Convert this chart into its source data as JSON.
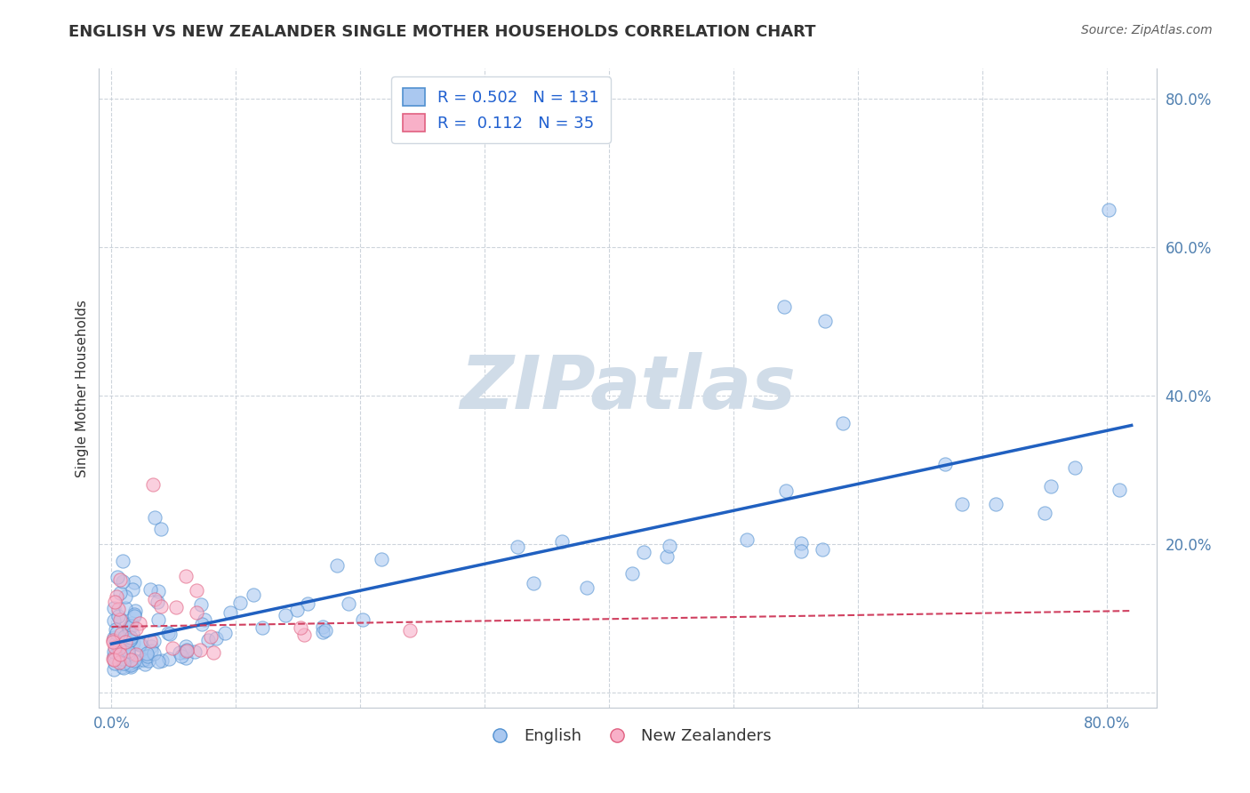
{
  "title": "ENGLISH VS NEW ZEALANDER SINGLE MOTHER HOUSEHOLDS CORRELATION CHART",
  "source": "Source: ZipAtlas.com",
  "ylabel": "Single Mother Households",
  "xlim": [
    -0.01,
    0.84
  ],
  "ylim": [
    -0.02,
    0.84
  ],
  "x_ticks": [
    0.0,
    0.1,
    0.2,
    0.3,
    0.4,
    0.5,
    0.6,
    0.7,
    0.8
  ],
  "x_tick_labels": [
    "0.0%",
    "",
    "",
    "",
    "",
    "",
    "",
    "",
    "80.0%"
  ],
  "y_ticks": [
    0.0,
    0.2,
    0.4,
    0.6,
    0.8
  ],
  "y_tick_labels": [
    "",
    "20.0%",
    "40.0%",
    "60.0%",
    "80.0%"
  ],
  "english_R": 0.502,
  "english_N": 131,
  "nz_R": 0.112,
  "nz_N": 35,
  "english_color": "#aac8f0",
  "english_edge_color": "#5090d0",
  "english_line_color": "#2060c0",
  "nz_color": "#f8b0c8",
  "nz_edge_color": "#e06080",
  "nz_line_color": "#d04060",
  "watermark_text": "ZIPatlas",
  "watermark_color": "#d0dce8",
  "background_color": "#ffffff",
  "grid_color": "#c8d0d8",
  "legend_label_english": "English",
  "legend_label_nz": "New Zealanders",
  "title_color": "#333333",
  "source_color": "#606060",
  "tick_color": "#5080b0",
  "ylabel_color": "#333333"
}
